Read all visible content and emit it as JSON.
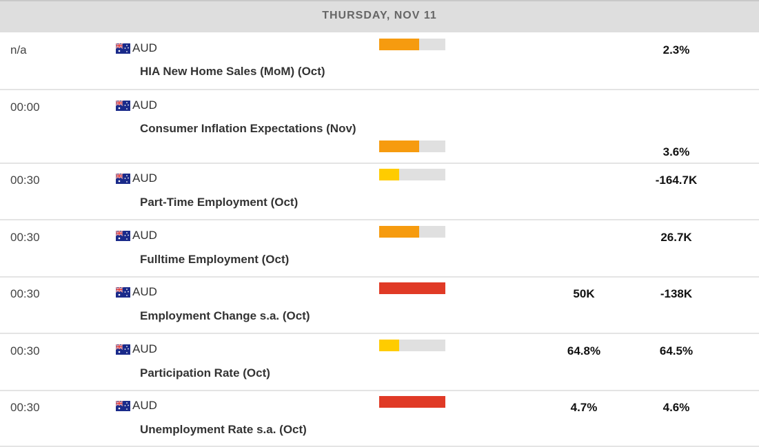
{
  "day_header": "THURSDAY, NOV 11",
  "colors": {
    "high": "#e03a26",
    "medium": "#f69b0f",
    "low": "#ffcc00",
    "track": "#e0e0e0"
  },
  "events": [
    {
      "time": "n/a",
      "currency": "AUD",
      "flag_icon": "australia-flag-icon",
      "name": "HIA New Home Sales (MoM) (Oct)",
      "impact": "medium",
      "impact_fraction": 0.6,
      "forecast": "",
      "previous": "2.3%"
    },
    {
      "time": "00:00",
      "currency": "AUD",
      "flag_icon": "australia-flag-icon",
      "name": "Consumer Inflation Expectations (Nov)",
      "impact": "medium",
      "impact_fraction": 0.6,
      "forecast": "",
      "previous": "3.6%"
    },
    {
      "time": "00:30",
      "currency": "AUD",
      "flag_icon": "australia-flag-icon",
      "name": "Part-Time Employment (Oct)",
      "impact": "low",
      "impact_fraction": 0.3,
      "forecast": "",
      "previous": "-164.7K"
    },
    {
      "time": "00:30",
      "currency": "AUD",
      "flag_icon": "australia-flag-icon",
      "name": "Fulltime Employment (Oct)",
      "impact": "medium",
      "impact_fraction": 0.6,
      "forecast": "",
      "previous": "26.7K"
    },
    {
      "time": "00:30",
      "currency": "AUD",
      "flag_icon": "australia-flag-icon",
      "name": "Employment Change s.a. (Oct)",
      "impact": "high",
      "impact_fraction": 1.0,
      "forecast": "50K",
      "previous": "-138K"
    },
    {
      "time": "00:30",
      "currency": "AUD",
      "flag_icon": "australia-flag-icon",
      "name": "Participation Rate (Oct)",
      "impact": "low",
      "impact_fraction": 0.3,
      "forecast": "64.8%",
      "previous": "64.5%"
    },
    {
      "time": "00:30",
      "currency": "AUD",
      "flag_icon": "australia-flag-icon",
      "name": "Unemployment Rate s.a. (Oct)",
      "impact": "high",
      "impact_fraction": 1.0,
      "forecast": "4.7%",
      "previous": "4.6%"
    }
  ]
}
